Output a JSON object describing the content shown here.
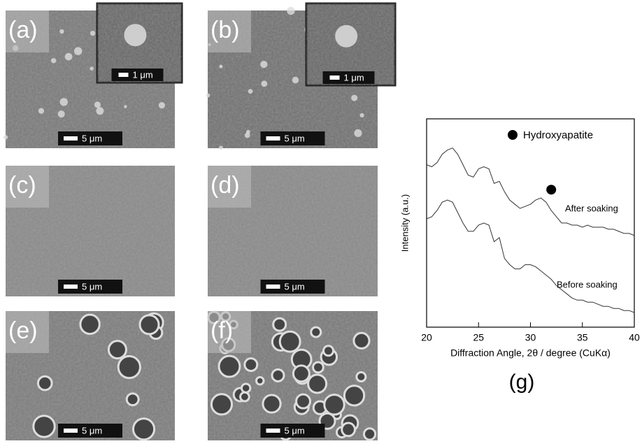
{
  "panels": [
    {
      "label": "(a)",
      "scale": "5 μm",
      "inset_scale": "1 μm"
    },
    {
      "label": "(b)",
      "scale": "5 μm",
      "inset_scale": "1 μm"
    },
    {
      "label": "(c)",
      "scale": "5 μm"
    },
    {
      "label": "(d)",
      "scale": "5 μm"
    },
    {
      "label": "(e)",
      "scale": "5 μm"
    },
    {
      "label": "(f)",
      "scale": "5 μm"
    }
  ],
  "chart_data": {
    "type": "line",
    "panel_label": "(g)",
    "x_label": "Diffraction Angle, 2θ / degree (CuKα)",
    "y_label": "Intensity (a.u.)",
    "legend": "Hydroxyapatite",
    "x": [
      20,
      20.5,
      21,
      21.5,
      22,
      22.5,
      23,
      23.5,
      24,
      24.5,
      25,
      25.5,
      26,
      26.5,
      27,
      27.5,
      28,
      28.5,
      29,
      29.5,
      30,
      30.5,
      31,
      31.5,
      32,
      32.5,
      33,
      33.5,
      34,
      34.5,
      35,
      35.5,
      36,
      36.5,
      37,
      37.5,
      38,
      38.5,
      39,
      39.5,
      40
    ],
    "series": [
      {
        "name": "After soaking",
        "color": "#333333",
        "values": [
          78,
          77,
          79,
          83,
          85,
          86,
          83,
          78,
          73,
          72,
          76,
          77,
          76,
          69,
          70,
          65,
          61,
          59,
          57,
          58,
          59,
          61,
          62,
          60,
          56,
          53,
          50,
          50,
          49,
          49,
          48,
          49,
          48,
          48,
          48,
          47,
          47,
          46,
          45,
          45,
          44
        ]
      },
      {
        "name": "Before soaking",
        "color": "#333333",
        "values": [
          52,
          53,
          56,
          60,
          61,
          60,
          55,
          50,
          46,
          46,
          49,
          50,
          49,
          41,
          43,
          33,
          30,
          28,
          28,
          30,
          30,
          29,
          27,
          25,
          23,
          20,
          18,
          16,
          14,
          13,
          13,
          12,
          12,
          11,
          10,
          10,
          9,
          9,
          8,
          8,
          7
        ]
      }
    ],
    "peak_markers": [
      {
        "x": 32,
        "y": 66
      }
    ],
    "xlim": [
      20,
      40
    ],
    "xticks": [
      20,
      25,
      30,
      35,
      40
    ],
    "ylim": [
      0,
      100
    ]
  }
}
